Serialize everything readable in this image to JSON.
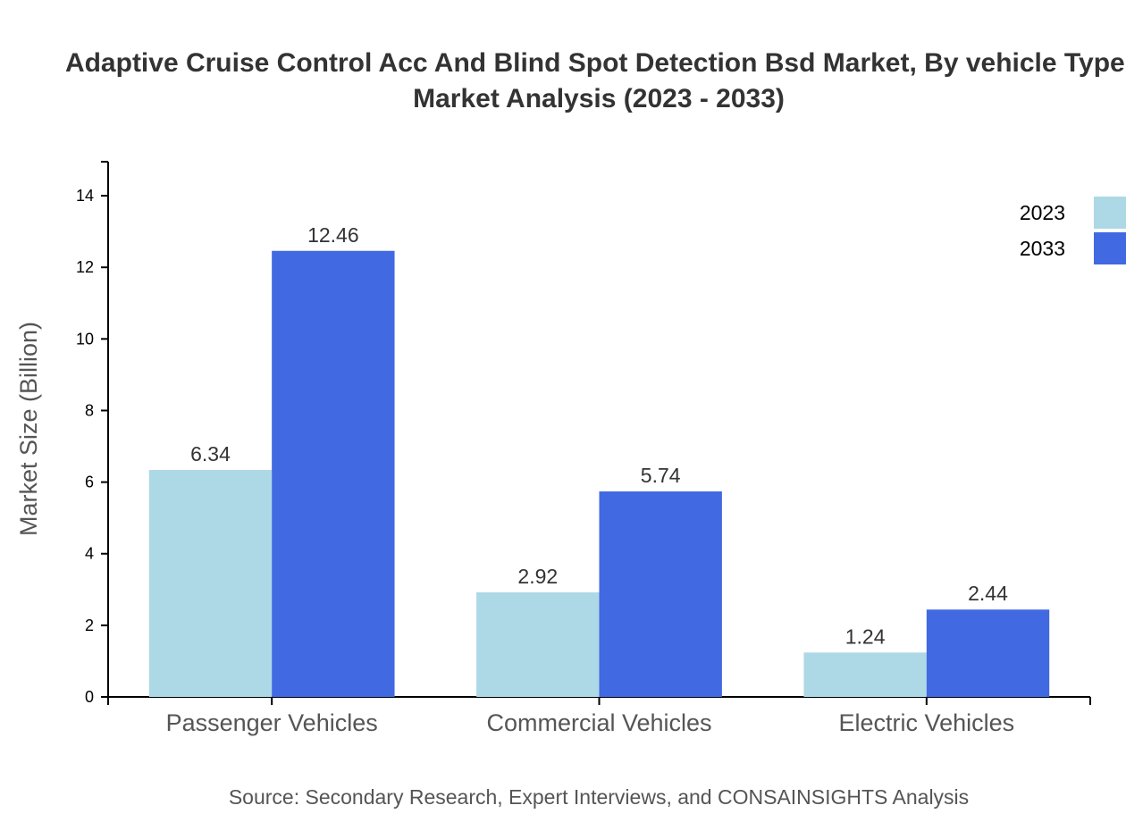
{
  "chart_data": {
    "type": "bar",
    "title_lines": [
      "Adaptive Cruise Control Acc And Blind Spot Detection Bsd Market, By vehicle Type,",
      "Market Analysis (2023 - 2033)"
    ],
    "xlabel": "",
    "ylabel": "Market Size (Billion)",
    "ylim": [
      0,
      15
    ],
    "yticks": [
      0,
      2,
      4,
      6,
      8,
      10,
      12,
      14
    ],
    "categories": [
      "Passenger Vehicles",
      "Commercial Vehicles",
      "Electric Vehicles"
    ],
    "series": [
      {
        "name": "2023",
        "color": "#ADD8E6",
        "values": [
          6.34,
          2.92,
          1.24
        ]
      },
      {
        "name": "2033",
        "color": "#4169E1",
        "values": [
          12.46,
          5.74,
          2.44
        ]
      }
    ],
    "legend_position": "top-right",
    "grid": false,
    "source": "Source: Secondary Research, Expert Interviews, and CONSAINSIGHTS Analysis"
  }
}
